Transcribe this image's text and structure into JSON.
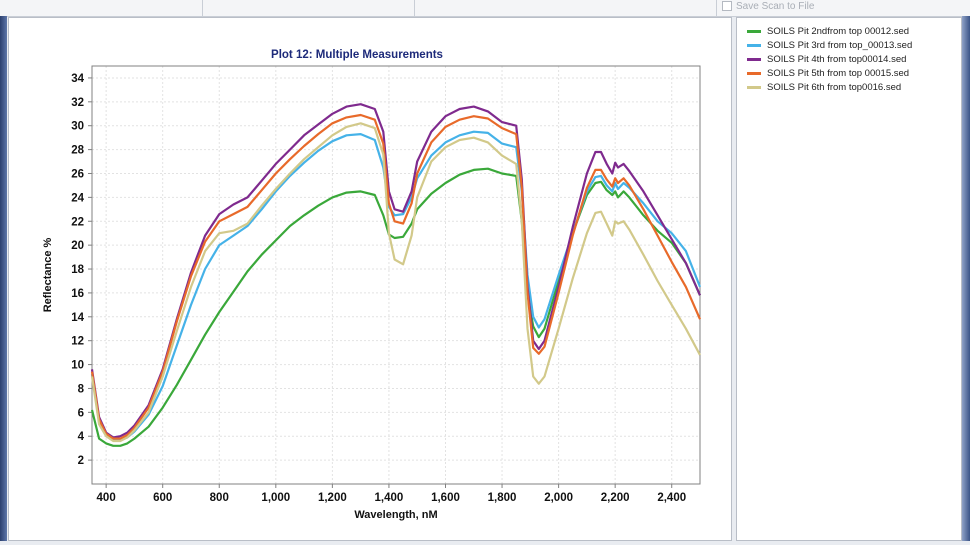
{
  "toolbar": {
    "save_label": "Save Scan to File"
  },
  "chart_data": {
    "type": "line",
    "title": "Plot 12: Multiple Measurements",
    "xlabel": "Wavelength, nM",
    "ylabel": "Reflectance %",
    "xlim": [
      350,
      2500
    ],
    "ylim": [
      0,
      35
    ],
    "xticks": [
      400,
      600,
      800,
      1000,
      1200,
      1400,
      1600,
      1800,
      2000,
      2200,
      2400
    ],
    "xtick_labels": [
      "400",
      "600",
      "800",
      "1,000",
      "1,200",
      "1,400",
      "1,600",
      "1,800",
      "2,000",
      "2,200",
      "2,400"
    ],
    "yticks": [
      2,
      4,
      6,
      8,
      10,
      12,
      14,
      16,
      18,
      20,
      22,
      24,
      26,
      28,
      30,
      32,
      34
    ],
    "grid": true,
    "legend_position": "right-panel",
    "x": [
      350,
      375,
      400,
      425,
      450,
      475,
      500,
      550,
      600,
      650,
      700,
      750,
      800,
      850,
      900,
      950,
      1000,
      1050,
      1100,
      1150,
      1200,
      1250,
      1300,
      1350,
      1380,
      1400,
      1420,
      1450,
      1480,
      1500,
      1550,
      1600,
      1650,
      1700,
      1750,
      1800,
      1850,
      1870,
      1890,
      1910,
      1930,
      1950,
      2000,
      2050,
      2100,
      2130,
      2150,
      2170,
      2190,
      2200,
      2210,
      2230,
      2250,
      2300,
      2350,
      2400,
      2450,
      2500
    ],
    "series": [
      {
        "name": "SOILS Pit 2ndfrom top 00012.sed",
        "color": "#3aa83a",
        "values": [
          6.2,
          3.8,
          3.4,
          3.2,
          3.2,
          3.4,
          3.8,
          4.8,
          6.4,
          8.3,
          10.4,
          12.5,
          14.4,
          16.1,
          17.8,
          19.2,
          20.4,
          21.6,
          22.5,
          23.3,
          24.0,
          24.4,
          24.5,
          24.2,
          22.5,
          20.9,
          20.6,
          20.7,
          21.8,
          23.0,
          24.3,
          25.2,
          25.9,
          26.3,
          26.4,
          26.0,
          25.8,
          22.0,
          16.0,
          13.2,
          12.3,
          13.0,
          17.0,
          21.0,
          24.2,
          25.2,
          25.3,
          24.6,
          24.2,
          24.5,
          24.0,
          24.5,
          24.0,
          22.5,
          21.2,
          20.2,
          18.5,
          15.8
        ]
      },
      {
        "name": "SOILS Pit 3rd from top_00013.sed",
        "color": "#45b2e8",
        "values": [
          9.2,
          5.2,
          4.1,
          3.7,
          3.7,
          3.9,
          4.4,
          5.8,
          8.2,
          11.6,
          15.0,
          18.0,
          20.0,
          20.8,
          21.6,
          23.0,
          24.5,
          25.8,
          26.9,
          27.9,
          28.7,
          29.2,
          29.3,
          28.8,
          26.5,
          23.2,
          22.5,
          22.6,
          24.0,
          25.6,
          27.5,
          28.6,
          29.2,
          29.5,
          29.4,
          28.5,
          28.2,
          24.5,
          17.5,
          14.0,
          13.1,
          13.8,
          17.5,
          21.0,
          24.5,
          25.7,
          25.8,
          25.0,
          24.5,
          25.2,
          24.7,
          25.2,
          24.8,
          23.5,
          22.0,
          21.0,
          19.5,
          16.5
        ]
      },
      {
        "name": "SOILS Pit 4th from top00014.sed",
        "color": "#7f2a8e",
        "values": [
          9.6,
          5.6,
          4.3,
          3.9,
          4.0,
          4.3,
          4.9,
          6.6,
          9.6,
          13.8,
          17.7,
          20.8,
          22.6,
          23.4,
          24.0,
          25.4,
          26.8,
          28.0,
          29.2,
          30.1,
          31.0,
          31.6,
          31.8,
          31.4,
          29.5,
          24.5,
          23.0,
          22.8,
          24.5,
          27.0,
          29.5,
          30.8,
          31.4,
          31.6,
          31.2,
          30.3,
          30.0,
          25.5,
          16.5,
          12.0,
          11.3,
          12.0,
          16.5,
          21.5,
          26.0,
          27.8,
          27.8,
          26.8,
          26.0,
          26.9,
          26.5,
          26.8,
          26.2,
          24.5,
          22.5,
          20.5,
          18.5,
          15.8
        ]
      },
      {
        "name": "SOILS Pit 5th from top 00015.sed",
        "color": "#e86a2a",
        "values": [
          9.4,
          5.4,
          4.2,
          3.8,
          3.8,
          4.1,
          4.7,
          6.4,
          9.4,
          13.6,
          17.4,
          20.3,
          22.0,
          22.6,
          23.2,
          24.6,
          26.0,
          27.2,
          28.3,
          29.3,
          30.2,
          30.7,
          30.9,
          30.5,
          28.5,
          23.5,
          22.0,
          21.8,
          23.5,
          26.0,
          28.6,
          29.9,
          30.5,
          30.8,
          30.6,
          29.8,
          29.3,
          24.8,
          16.0,
          11.4,
          10.9,
          11.5,
          16.0,
          20.8,
          24.8,
          26.3,
          26.3,
          25.5,
          24.9,
          25.6,
          25.2,
          25.6,
          25.0,
          23.0,
          20.8,
          18.6,
          16.5,
          13.8
        ]
      },
      {
        "name": "SOILS Pit 6th from top0016.sed",
        "color": "#d2c98a",
        "values": [
          9.0,
          5.0,
          4.0,
          3.6,
          3.6,
          3.9,
          4.5,
          6.0,
          9.0,
          12.8,
          16.5,
          19.5,
          21.0,
          21.2,
          21.8,
          23.3,
          24.7,
          26.0,
          27.2,
          28.2,
          29.2,
          29.9,
          30.2,
          29.8,
          27.6,
          21.0,
          18.8,
          18.4,
          20.8,
          24.0,
          27.0,
          28.2,
          28.8,
          29.0,
          28.6,
          27.5,
          26.8,
          22.0,
          13.0,
          9.0,
          8.4,
          9.0,
          13.0,
          17.2,
          21.0,
          22.7,
          22.8,
          21.8,
          20.8,
          22.0,
          21.8,
          22.0,
          21.3,
          19.2,
          17.0,
          15.0,
          13.0,
          10.8
        ]
      }
    ]
  }
}
